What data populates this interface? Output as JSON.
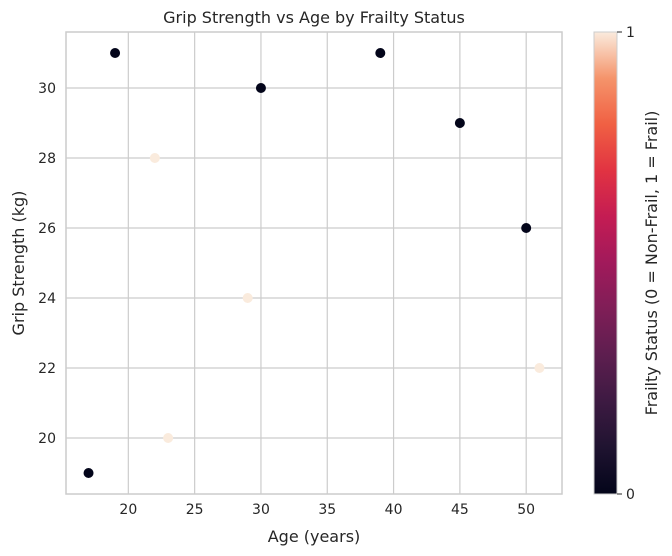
{
  "chart_data": {
    "type": "scatter",
    "title": "Grip Strength vs Age by Frailty Status",
    "xlabel": "Age (years)",
    "ylabel": "Grip Strength (kg)",
    "xlim": [
      15.3,
      52.7
    ],
    "ylim": [
      18.4,
      31.6
    ],
    "xticks": [
      20,
      25,
      30,
      35,
      40,
      45,
      50
    ],
    "yticks": [
      20,
      22,
      24,
      26,
      28,
      30
    ],
    "grid": true,
    "points": [
      {
        "x": 17,
        "y": 19,
        "frailty": 0
      },
      {
        "x": 19,
        "y": 31,
        "frailty": 0
      },
      {
        "x": 22,
        "y": 28,
        "frailty": 1
      },
      {
        "x": 23,
        "y": 20,
        "frailty": 1
      },
      {
        "x": 29,
        "y": 24,
        "frailty": 1
      },
      {
        "x": 30,
        "y": 30,
        "frailty": 0
      },
      {
        "x": 39,
        "y": 31,
        "frailty": 0
      },
      {
        "x": 45,
        "y": 29,
        "frailty": 0
      },
      {
        "x": 50,
        "y": 26,
        "frailty": 0
      },
      {
        "x": 51,
        "y": 22,
        "frailty": 1
      }
    ],
    "colorbar": {
      "label": "Frailty Status (0 = Non-Frail, 1 = Frail)",
      "ticks": [
        0,
        1
      ],
      "colormap": "rocket",
      "color_min": "#03051a",
      "color_max": "#faebdd"
    }
  }
}
